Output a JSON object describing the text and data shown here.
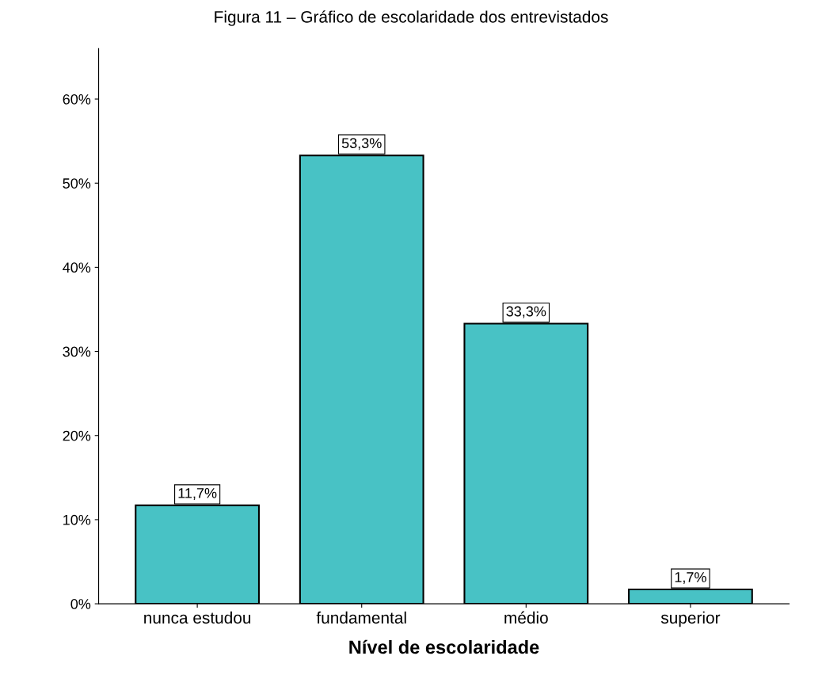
{
  "chart_data": {
    "type": "bar",
    "title": "Figura 11 – Gráfico de escolaridade dos entrevistados",
    "xlabel": "Nível de escolaridade",
    "categories": [
      "nunca estudou",
      "fundamental",
      "médio",
      "superior"
    ],
    "values": [
      11.7,
      53.3,
      33.3,
      1.7
    ],
    "value_labels": [
      "11,7%",
      "53,3%",
      "33,3%",
      "1,7%"
    ],
    "color": "#48c2c5",
    "ylim": [
      0,
      66
    ],
    "yticks": [
      {
        "value": 0,
        "label": "0%"
      },
      {
        "value": 10,
        "label": "10%"
      },
      {
        "value": 20,
        "label": "20%"
      },
      {
        "value": 30,
        "label": "30%"
      },
      {
        "value": 40,
        "label": "40%"
      },
      {
        "value": 50,
        "label": "50%"
      },
      {
        "value": 60,
        "label": "60%"
      }
    ],
    "grid": false
  }
}
